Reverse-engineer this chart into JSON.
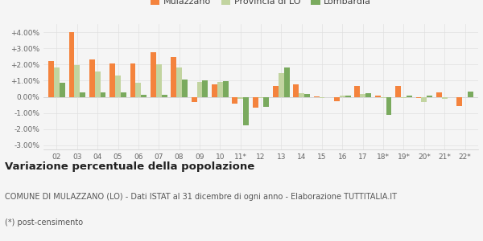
{
  "categories": [
    "02",
    "03",
    "04",
    "05",
    "06",
    "07",
    "08",
    "09",
    "10",
    "11*",
    "12",
    "13",
    "14",
    "15",
    "16",
    "17",
    "18*",
    "19*",
    "20*",
    "21*",
    "22*"
  ],
  "mulazzano": [
    2.2,
    4.0,
    2.3,
    2.05,
    2.05,
    2.75,
    2.45,
    -0.3,
    0.75,
    -0.4,
    -0.65,
    0.65,
    0.75,
    0.02,
    -0.25,
    0.65,
    0.1,
    0.65,
    -0.05,
    0.3,
    -0.55
  ],
  "provincia_lo": [
    1.8,
    1.95,
    1.55,
    1.3,
    0.85,
    2.0,
    1.8,
    0.9,
    0.9,
    -0.1,
    -0.05,
    1.45,
    0.25,
    -0.05,
    0.1,
    0.2,
    -0.05,
    -0.05,
    -0.3,
    -0.1,
    0.0
  ],
  "lombardia": [
    0.85,
    0.3,
    0.3,
    0.3,
    0.15,
    0.15,
    1.05,
    1.0,
    0.95,
    -1.75,
    -0.6,
    1.8,
    0.2,
    0.0,
    0.1,
    0.25,
    -1.1,
    0.1,
    0.1,
    0.0,
    0.35
  ],
  "color_mulazzano": "#f4833d",
  "color_provincia": "#c2d4a0",
  "color_lombardia": "#7aaa5e",
  "bg_color": "#f5f5f5",
  "ylim": [
    -3.25,
    4.5
  ],
  "yticks": [
    -3.0,
    -2.0,
    -1.0,
    0.0,
    1.0,
    2.0,
    3.0,
    4.0
  ],
  "ytick_labels": [
    "-3.00%",
    "-2.00%",
    "-1.00%",
    "0.00%",
    "+1.00%",
    "+2.00%",
    "+3.00%",
    "+4.00%"
  ],
  "title": "Variazione percentuale della popolazione",
  "subtitle": "COMUNE DI MULAZZANO (LO) - Dati ISTAT al 31 dicembre di ogni anno - Elaborazione TUTTITALIA.IT",
  "footnote": "(*) post-censimento",
  "legend_labels": [
    "Mulazzano",
    "Provincia di LO",
    "Lombardia"
  ],
  "title_fontsize": 9.5,
  "subtitle_fontsize": 7.0,
  "footnote_fontsize": 7.0,
  "tick_fontsize": 6.5,
  "legend_fontsize": 8.0
}
